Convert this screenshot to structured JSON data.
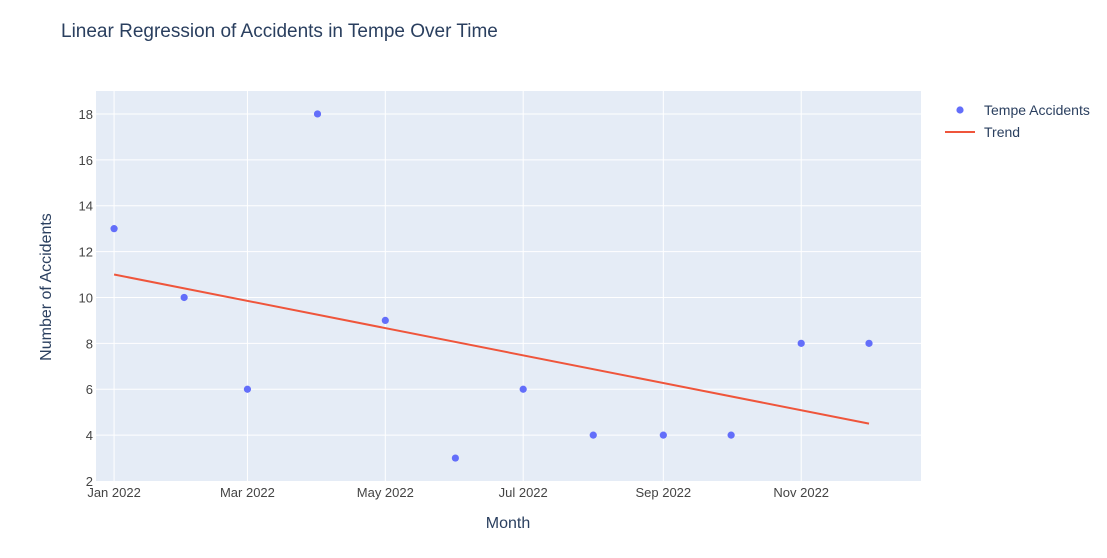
{
  "chart_data": {
    "type": "scatter",
    "title": "Linear Regression of Accidents in Tempe Over Time",
    "xlabel": "Month",
    "ylabel": "Number of Accidents",
    "x_tick_labels": [
      "Jan 2022",
      "Mar 2022",
      "May 2022",
      "Jul 2022",
      "Sep 2022",
      "Nov 2022"
    ],
    "x_tick_dates": [
      "2022-01-01",
      "2022-03-01",
      "2022-05-01",
      "2022-07-01",
      "2022-09-01",
      "2022-11-01"
    ],
    "xlim": [
      "2021-12-24",
      "2022-12-24"
    ],
    "y_ticks": [
      2,
      4,
      6,
      8,
      10,
      12,
      14,
      16,
      18
    ],
    "ylim": [
      2,
      19
    ],
    "grid": true,
    "legend_position": "top-right",
    "series": [
      {
        "name": "Tempe Accidents",
        "mode": "markers",
        "color": "#636efa",
        "x": [
          "2022-01-01",
          "2022-02-01",
          "2022-03-01",
          "2022-04-01",
          "2022-05-01",
          "2022-06-01",
          "2022-07-01",
          "2022-08-01",
          "2022-09-01",
          "2022-10-01",
          "2022-11-01",
          "2022-12-01"
        ],
        "y": [
          13,
          10,
          6,
          18,
          9,
          3,
          6,
          4,
          4,
          4,
          8,
          8
        ]
      },
      {
        "name": "Trend",
        "mode": "lines",
        "color": "#ef553b",
        "x": [
          "2022-01-01",
          "2022-12-01"
        ],
        "y": [
          11.0,
          4.5
        ]
      }
    ],
    "colors": {
      "plot_background": "#e5ecf6",
      "grid": "#ffffff",
      "text": "#2a3f5f",
      "tick_text": "#444444"
    }
  }
}
